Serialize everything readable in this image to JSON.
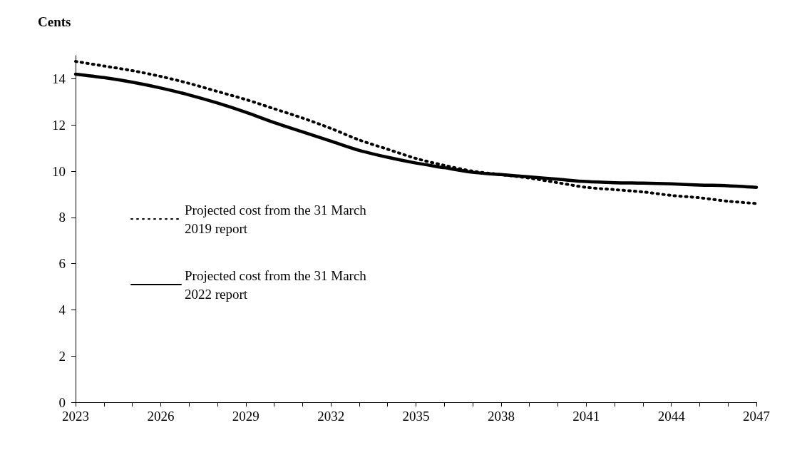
{
  "chart_data": {
    "type": "line",
    "ylabel": "Cents",
    "x": [
      2023,
      2024,
      2025,
      2026,
      2027,
      2028,
      2029,
      2030,
      2031,
      2032,
      2033,
      2034,
      2035,
      2036,
      2037,
      2038,
      2039,
      2040,
      2041,
      2042,
      2043,
      2044,
      2045,
      2046,
      2047
    ],
    "series": [
      {
        "name": "Projected cost from the 31 March 2019 report",
        "color": "#000000",
        "line_style": "dotted",
        "values": [
          14.75,
          14.55,
          14.35,
          14.1,
          13.8,
          13.45,
          13.1,
          12.7,
          12.3,
          11.85,
          11.35,
          10.95,
          10.55,
          10.25,
          10.0,
          9.85,
          9.7,
          9.5,
          9.3,
          9.2,
          9.1,
          8.95,
          8.85,
          8.7,
          8.6
        ]
      },
      {
        "name": "Projected cost from the 31 March 2022 report",
        "color": "#000000",
        "line_style": "solid",
        "values": [
          14.2,
          14.05,
          13.85,
          13.6,
          13.3,
          12.95,
          12.55,
          12.1,
          11.7,
          11.3,
          10.9,
          10.6,
          10.35,
          10.15,
          9.95,
          9.85,
          9.75,
          9.65,
          9.55,
          9.5,
          9.48,
          9.45,
          9.4,
          9.37,
          9.3
        ]
      }
    ],
    "xlim": [
      2023,
      2047
    ],
    "xticks": [
      2023,
      {
        "value": 2024,
        "label": null
      },
      {
        "value": 2025,
        "label": null
      },
      2026,
      {
        "value": 2027,
        "label": null
      },
      {
        "value": 2028,
        "label": null
      },
      2029,
      {
        "value": 2030,
        "label": null
      },
      {
        "value": 2031,
        "label": null
      },
      2032,
      {
        "value": 2033,
        "label": null
      },
      {
        "value": 2034,
        "label": null
      },
      2035,
      {
        "value": 2036,
        "label": null
      },
      {
        "value": 2037,
        "label": null
      },
      2038,
      {
        "value": 2039,
        "label": null
      },
      {
        "value": 2040,
        "label": null
      },
      2041,
      {
        "value": 2042,
        "label": null
      },
      {
        "value": 2043,
        "label": null
      },
      2044,
      {
        "value": 2045,
        "label": null
      },
      {
        "value": 2046,
        "label": null
      },
      2047
    ],
    "ylim": [
      0,
      15
    ],
    "yticks": [
      0,
      2,
      4,
      6,
      8,
      10,
      12,
      14
    ],
    "grid": false,
    "legend": "left",
    "marker": "none"
  }
}
